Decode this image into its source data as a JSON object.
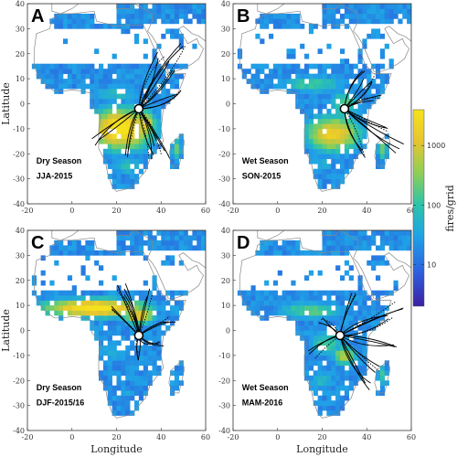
{
  "chart_data": [
    {
      "type": "heatmap",
      "panel": "A",
      "season_line1": "Dry Season",
      "season_line2": "JJA-2015",
      "xlim": [
        -20,
        60
      ],
      "ylim": [
        -40,
        40
      ],
      "xticks": [
        "-20",
        "0",
        "20",
        "40",
        "60"
      ],
      "yticks": [
        "40",
        "30",
        "20",
        "10",
        "0",
        "-10",
        "-20",
        "-30",
        "-40"
      ],
      "xlabel": "",
      "ylabel": "Latitude",
      "hotspots": [
        {
          "lon": 22,
          "lat": -10,
          "rx": 16,
          "ry": 9,
          "level": 1.0
        },
        {
          "lon": 33,
          "lat": -8,
          "rx": 5,
          "ry": 6,
          "level": 0.85
        },
        {
          "lon": 20,
          "lat": 4,
          "rx": 14,
          "ry": 4,
          "level": 0.4
        },
        {
          "lon": 47,
          "lat": -18,
          "rx": 2.5,
          "ry": 5,
          "level": 0.6
        },
        {
          "lon": 25,
          "lat": -25,
          "rx": 8,
          "ry": 4,
          "level": 0.45
        }
      ],
      "trajectory_origin": {
        "lon": 30,
        "lat": -2
      },
      "trajectory_directions": [
        {
          "lon": 50,
          "lat": 25
        },
        {
          "lon": 45,
          "lat": 15
        },
        {
          "lon": 40,
          "lat": 20
        },
        {
          "lon": 42,
          "lat": -20
        },
        {
          "lon": 35,
          "lat": -22
        },
        {
          "lon": 10,
          "lat": -15
        },
        {
          "lon": 25,
          "lat": -20
        },
        {
          "lon": 38,
          "lat": -15
        },
        {
          "lon": 48,
          "lat": 5
        }
      ]
    },
    {
      "type": "heatmap",
      "panel": "B",
      "season_line1": "Wet Season",
      "season_line2": "SON-2015",
      "xlim": [
        -20,
        60
      ],
      "ylim": [
        -40,
        40
      ],
      "xticks": [
        "-20",
        "0",
        "20",
        "40",
        "60"
      ],
      "yticks": [
        "40",
        "30",
        "20",
        "10",
        "0",
        "-10",
        "-20",
        "-30",
        "-40"
      ],
      "xlabel": "",
      "ylabel": "",
      "hotspots": [
        {
          "lon": 25,
          "lat": -12,
          "rx": 14,
          "ry": 8,
          "level": 0.85
        },
        {
          "lon": 30,
          "lat": 0,
          "rx": 8,
          "ry": 6,
          "level": 0.55
        },
        {
          "lon": 15,
          "lat": 8,
          "rx": 18,
          "ry": 4,
          "level": 0.5
        },
        {
          "lon": 20,
          "lat": -24,
          "rx": 8,
          "ry": 4,
          "level": 0.35
        },
        {
          "lon": 47,
          "lat": -18,
          "rx": 2.5,
          "ry": 5,
          "level": 0.6
        }
      ],
      "trajectory_origin": {
        "lon": 30,
        "lat": -2
      },
      "trajectory_directions": [
        {
          "lon": 50,
          "lat": -10
        },
        {
          "lon": 55,
          "lat": -18
        },
        {
          "lon": 42,
          "lat": 10
        },
        {
          "lon": 40,
          "lat": -20
        },
        {
          "lon": 45,
          "lat": 2
        },
        {
          "lon": 38,
          "lat": 12
        }
      ]
    },
    {
      "type": "heatmap",
      "panel": "C",
      "season_line1": "Dry Season",
      "season_line2": "DJF-2015/16",
      "xlim": [
        -20,
        60
      ],
      "ylim": [
        -40,
        40
      ],
      "xticks": [
        "-20",
        "0",
        "20",
        "40",
        "60"
      ],
      "yticks": [
        "40",
        "30",
        "20",
        "10",
        "0",
        "-10",
        "-20",
        "-30",
        "-40"
      ],
      "xlabel": "Longitude",
      "ylabel": "Latitude",
      "hotspots": [
        {
          "lon": 10,
          "lat": 9,
          "rx": 26,
          "ry": 4,
          "level": 1.0
        },
        {
          "lon": 30,
          "lat": 6,
          "rx": 8,
          "ry": 4,
          "level": 0.85
        },
        {
          "lon": 20,
          "lat": -8,
          "rx": 12,
          "ry": 6,
          "level": 0.35
        },
        {
          "lon": 25,
          "lat": -25,
          "rx": 6,
          "ry": 3,
          "level": 0.3
        }
      ],
      "trajectory_origin": {
        "lon": 30,
        "lat": -2
      },
      "trajectory_directions": [
        {
          "lon": 22,
          "lat": 18
        },
        {
          "lon": 25,
          "lat": 15
        },
        {
          "lon": 45,
          "lat": 5
        },
        {
          "lon": 35,
          "lat": 15
        },
        {
          "lon": 28,
          "lat": -10
        },
        {
          "lon": 40,
          "lat": -5
        },
        {
          "lon": 18,
          "lat": 10
        }
      ]
    },
    {
      "type": "heatmap",
      "panel": "D",
      "season_line1": "Wet Season",
      "season_line2": "MAM-2016",
      "xlim": [
        -20,
        60
      ],
      "ylim": [
        -40,
        40
      ],
      "xticks": [
        "-20",
        "0",
        "20",
        "40",
        "60"
      ],
      "yticks": [
        "40",
        "30",
        "20",
        "10",
        "0",
        "-10",
        "-20",
        "-30",
        "-40"
      ],
      "xlabel": "Longitude",
      "ylabel": "",
      "hotspots": [
        {
          "lon": 15,
          "lat": 8,
          "rx": 18,
          "ry": 4,
          "level": 0.55
        },
        {
          "lon": 22,
          "lat": -5,
          "rx": 10,
          "ry": 6,
          "level": 0.5
        },
        {
          "lon": 30,
          "lat": -10,
          "rx": 6,
          "ry": 4,
          "level": 0.7
        },
        {
          "lon": 20,
          "lat": -20,
          "rx": 8,
          "ry": 5,
          "level": 0.4
        },
        {
          "lon": 47,
          "lat": -18,
          "rx": 2.5,
          "ry": 5,
          "level": 0.5
        }
      ],
      "trajectory_origin": {
        "lon": 28,
        "lat": -2
      },
      "trajectory_directions": [
        {
          "lon": 50,
          "lat": 5
        },
        {
          "lon": 52,
          "lat": -5
        },
        {
          "lon": 45,
          "lat": -15
        },
        {
          "lon": 35,
          "lat": 15
        },
        {
          "lon": 15,
          "lat": -10
        },
        {
          "lon": 40,
          "lat": -22
        },
        {
          "lon": 20,
          "lat": 5
        },
        {
          "lon": 55,
          "lat": 10
        }
      ]
    }
  ],
  "colorbar": {
    "label": "fires/grid",
    "ticks": [
      "1000",
      "100",
      "10"
    ],
    "tick_values": [
      1000,
      100,
      10
    ],
    "range": [
      2,
      4000
    ],
    "scale": "log",
    "colors": [
      "#3d1fa3",
      "#2b63e0",
      "#1fa3e6",
      "#2dc4a8",
      "#8fcf55",
      "#e6c52f",
      "#f5e21c"
    ]
  },
  "colors": {
    "land_outline": "#888888",
    "trajectory": "#000000",
    "ocean": "#ffffff"
  }
}
